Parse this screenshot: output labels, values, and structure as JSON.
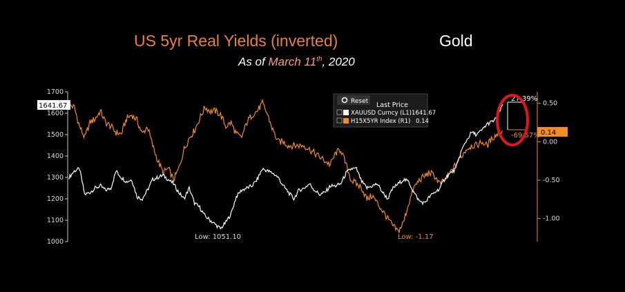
{
  "titles": {
    "left": "US 5yr Real Yields (inverted)",
    "right": "Gold",
    "subtitle_prefix": "As of ",
    "subtitle_month": "March 11",
    "subtitle_sup": "th",
    "subtitle_suffix": ", 2020"
  },
  "legend": {
    "reset_label": "Reset",
    "header": "Last Price",
    "items": [
      {
        "label": "XAUUSD Curncy (L1)",
        "value": "1641.67",
        "color": "#ffffff"
      },
      {
        "label": "H15X5YR Index (R1)",
        "value": "0.14",
        "color": "#f28c28"
      }
    ]
  },
  "annotations": {
    "gold_low": "Low: 1051.10",
    "yield_low": "Low: -1.17",
    "gold_last": "1641.67",
    "yield_last": "0.14",
    "pct_up": "27.39%",
    "pct_down": "-69.57%"
  },
  "colors": {
    "gold": "#ffffff",
    "yield": "#f28c28",
    "highlight": "#e0161c"
  },
  "chart_data": {
    "type": "line",
    "left_axis": {
      "range": [
        1000,
        1700
      ],
      "ticks": [
        1000,
        1100,
        1200,
        1300,
        1400,
        1500,
        1600,
        1700
      ]
    },
    "right_axis": {
      "range": [
        -1.3,
        0.65
      ],
      "ticks": [
        -1.0,
        -0.5,
        0.0,
        0.5
      ],
      "tick_labels": [
        "-1.00",
        "-0.50",
        "0.00",
        "0.50"
      ]
    },
    "legend_placement": "top-right",
    "grid": false,
    "series": [
      {
        "name": "XAUUSD Curncy (L1)",
        "axis": "left",
        "values": [
          1300,
          1330,
          1340,
          1220,
          1230,
          1250,
          1260,
          1240,
          1250,
          1330,
          1300,
          1280,
          1290,
          1210,
          1200,
          1240,
          1290,
          1300,
          1310,
          1290,
          1270,
          1230,
          1200,
          1250,
          1180,
          1160,
          1120,
          1100,
          1080,
          1060,
          1090,
          1130,
          1210,
          1240,
          1250,
          1260,
          1290,
          1340,
          1330,
          1320,
          1300,
          1260,
          1230,
          1200,
          1240,
          1250,
          1270,
          1240,
          1220,
          1230,
          1260,
          1260,
          1270,
          1320,
          1340,
          1340,
          1280,
          1250,
          1260,
          1270,
          1230,
          1200,
          1250,
          1270,
          1290,
          1280,
          1230,
          1190,
          1180,
          1210,
          1230,
          1250,
          1300,
          1320,
          1340,
          1420,
          1470,
          1510,
          1500,
          1520,
          1550,
          1560,
          1580,
          1642
        ]
      },
      {
        "name": "H15X5YR Index (R1)",
        "axis": "right",
        "values": [
          0.48,
          0.45,
          0.2,
          0.05,
          0.25,
          0.3,
          0.4,
          0.25,
          0.2,
          0.12,
          0.1,
          0.3,
          0.35,
          0.28,
          0.1,
          0.2,
          -0.05,
          -0.25,
          -0.4,
          -0.35,
          -0.5,
          -0.35,
          -0.1,
          0.05,
          0.15,
          0.3,
          0.45,
          0.4,
          0.4,
          0.35,
          0.2,
          0.25,
          0.1,
          0.05,
          0.25,
          0.35,
          0.4,
          0.5,
          0.35,
          0.15,
          0.0,
          0.0,
          -0.05,
          -0.05,
          -0.05,
          -0.05,
          -0.1,
          -0.15,
          -0.2,
          -0.25,
          -0.3,
          -0.15,
          -0.1,
          -0.3,
          -0.5,
          -0.55,
          -0.6,
          -0.75,
          -0.7,
          -0.8,
          -0.9,
          -1.0,
          -1.1,
          -1.17,
          -1.05,
          -0.8,
          -0.6,
          -0.5,
          -0.45,
          -0.4,
          -0.45,
          -0.55,
          -0.5,
          -0.4,
          -0.3,
          -0.2,
          -0.1,
          -0.05,
          -0.05,
          0.0,
          -0.05,
          0.05,
          0.1,
          0.14
        ]
      }
    ]
  }
}
